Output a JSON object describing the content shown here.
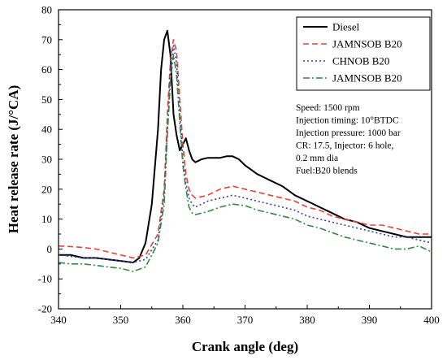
{
  "chart_data": {
    "type": "line",
    "title": "",
    "xlabel": "Crank angle (deg)",
    "ylabel": "Heat release rate (J/°CA)",
    "xlim": [
      340,
      400
    ],
    "ylim": [
      -20,
      80
    ],
    "xticks": [
      340,
      350,
      360,
      370,
      380,
      390,
      400
    ],
    "yticks": [
      -20,
      -10,
      0,
      10,
      20,
      30,
      40,
      50,
      60,
      70,
      80
    ],
    "grid": false,
    "legend_position": "top-right",
    "series": [
      {
        "name": "Diesel",
        "color": "#000000",
        "dash": "solid",
        "x": [
          340,
          342,
          344,
          346,
          348,
          350,
          352,
          353,
          354,
          355,
          356,
          356.5,
          357,
          357.5,
          358,
          358.5,
          359,
          359.5,
          360,
          360.5,
          361,
          361.5,
          362,
          363,
          364,
          365,
          366,
          367,
          368,
          369,
          370,
          372,
          374,
          376,
          378,
          380,
          382,
          384,
          386,
          388,
          390,
          392,
          394,
          396,
          398,
          400
        ],
        "y": [
          -2,
          -2,
          -3,
          -3,
          -3.5,
          -4,
          -4.5,
          -3,
          2,
          15,
          40,
          60,
          70,
          73,
          65,
          45,
          38,
          33,
          35,
          37,
          33,
          30,
          29,
          30,
          30.5,
          30.5,
          30.5,
          31,
          31,
          30,
          28,
          25,
          23,
          21,
          18,
          16,
          14,
          12,
          10,
          9,
          7,
          6,
          5,
          4,
          4,
          4
        ]
      },
      {
        "name": "JAMNSOB B20",
        "color": "#e8413a",
        "dash": "dashed",
        "x": [
          340,
          342,
          344,
          346,
          348,
          350,
          352,
          354,
          356,
          357,
          357.5,
          358,
          358.5,
          359,
          359.5,
          360,
          360.5,
          361,
          361.5,
          362,
          364,
          366,
          368,
          370,
          372,
          374,
          376,
          378,
          380,
          382,
          384,
          386,
          388,
          390,
          392,
          394,
          396,
          398,
          400
        ],
        "y": [
          1,
          0.8,
          0.5,
          0,
          -1,
          -2,
          -3,
          -2,
          5,
          20,
          45,
          63,
          70,
          66,
          50,
          35,
          25,
          20,
          18,
          17,
          18,
          20,
          21,
          20,
          19,
          18,
          17,
          16,
          14,
          13,
          11,
          10,
          9,
          8,
          8,
          7,
          6,
          5,
          5
        ]
      },
      {
        "name": "CHNOB B20",
        "color": "#2e3fbf",
        "dash": "dotted",
        "x": [
          340,
          342,
          344,
          346,
          348,
          350,
          352,
          354,
          356,
          357,
          357.5,
          358,
          358.5,
          359,
          359.5,
          360,
          360.5,
          361,
          361.5,
          362,
          364,
          366,
          368,
          370,
          372,
          374,
          376,
          378,
          380,
          382,
          384,
          386,
          388,
          390,
          392,
          394,
          396,
          398,
          400
        ],
        "y": [
          -2,
          -2.5,
          -3,
          -3,
          -3.5,
          -4,
          -4.5,
          -3.5,
          3,
          18,
          40,
          60,
          68,
          62,
          45,
          30,
          22,
          17,
          15,
          14,
          16,
          17,
          18,
          17,
          16,
          15,
          14,
          13,
          11,
          10,
          9,
          8,
          7,
          6,
          5,
          4,
          4,
          3,
          2
        ]
      },
      {
        "name": "JAMNSOB B20",
        "color": "#2e8b3e",
        "dash": "dashdot",
        "x": [
          340,
          342,
          344,
          346,
          348,
          350,
          352,
          354,
          356,
          357,
          357.5,
          358,
          358.5,
          359,
          359.5,
          360,
          360.5,
          361,
          361.5,
          362,
          364,
          366,
          368,
          370,
          372,
          374,
          376,
          378,
          380,
          382,
          384,
          386,
          388,
          390,
          392,
          394,
          396,
          398,
          400
        ],
        "y": [
          -4.5,
          -5,
          -5,
          -5.5,
          -6,
          -6.5,
          -7.5,
          -6,
          2,
          15,
          38,
          56,
          65,
          58,
          42,
          28,
          20,
          14,
          12,
          11.5,
          12.5,
          14,
          15,
          14.5,
          13,
          12,
          11,
          10,
          8,
          7,
          5.5,
          4,
          3,
          2,
          1,
          0,
          0,
          1,
          -1
        ]
      }
    ],
    "annotations": [
      "Speed: 1500 rpm",
      "Injection timing: 10°BTDC",
      "Injection pressure: 1000 bar",
      "CR: 17.5, Injector: 6 hole,",
      "0.2 mm dia",
      "Fuel:B20 blends"
    ]
  }
}
